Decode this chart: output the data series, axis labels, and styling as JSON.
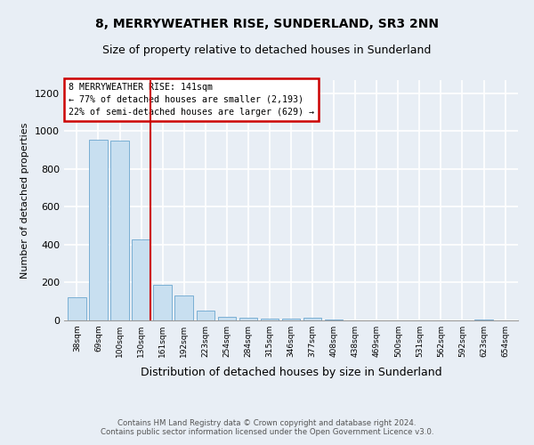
{
  "title": "8, MERRYWEATHER RISE, SUNDERLAND, SR3 2NN",
  "subtitle": "Size of property relative to detached houses in Sunderland",
  "xlabel": "Distribution of detached houses by size in Sunderland",
  "ylabel": "Number of detached properties",
  "categories": [
    "38sqm",
    "69sqm",
    "100sqm",
    "130sqm",
    "161sqm",
    "192sqm",
    "223sqm",
    "254sqm",
    "284sqm",
    "315sqm",
    "346sqm",
    "377sqm",
    "408sqm",
    "438sqm",
    "469sqm",
    "500sqm",
    "531sqm",
    "562sqm",
    "592sqm",
    "623sqm",
    "654sqm"
  ],
  "values": [
    120,
    955,
    950,
    430,
    190,
    130,
    50,
    20,
    14,
    10,
    10,
    14,
    3,
    0,
    2,
    2,
    0,
    2,
    0,
    5,
    2
  ],
  "bar_color": "#c8dff0",
  "bar_edge_color": "#7aafd4",
  "annotation_line_label": "8 MERRYWEATHER RISE: 141sqm",
  "annotation_text1": "← 77% of detached houses are smaller (2,193)",
  "annotation_text2": "22% of semi-detached houses are larger (629) →",
  "annotation_box_color": "#cc0000",
  "annotation_fill_color": "#ffffff",
  "vline_color": "#cc0000",
  "ylim": [
    0,
    1270
  ],
  "yticks": [
    0,
    200,
    400,
    600,
    800,
    1000,
    1200
  ],
  "footer": "Contains HM Land Registry data © Crown copyright and database right 2024.\nContains public sector information licensed under the Open Government Licence v3.0.",
  "background_color": "#e8eef5",
  "plot_bg_color": "#e8eef5",
  "title_fontsize": 10,
  "subtitle_fontsize": 9,
  "xlabel_fontsize": 9,
  "ylabel_fontsize": 8
}
